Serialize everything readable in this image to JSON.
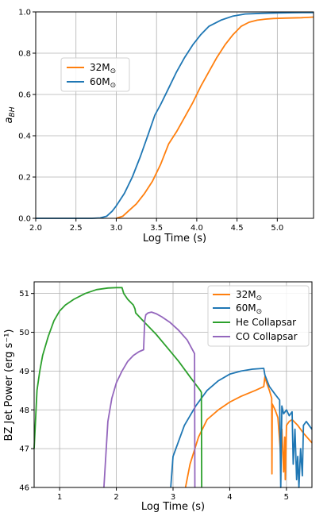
{
  "colors": {
    "orange": "#ff7f0e",
    "blue": "#1f77b4",
    "green": "#2ca02c",
    "purple": "#9467bd",
    "grid": "#b0b0b0"
  },
  "chart_data": [
    {
      "type": "line",
      "xlabel": "Log Time (s)",
      "ylabel_main": "a",
      "ylabel_sub": "BH",
      "xlim": [
        2.0,
        5.45
      ],
      "ylim": [
        0.0,
        1.0
      ],
      "xticks": [
        "2.0",
        "2.5",
        "3.0",
        "3.5",
        "4.0",
        "4.5",
        "5.0"
      ],
      "yticks": [
        "0.0",
        "0.2",
        "0.4",
        "0.6",
        "0.8",
        "1.0"
      ],
      "grid": true,
      "legend_position": "upper-left",
      "series": [
        {
          "name": "32M",
          "name_sub": "⊙",
          "color": "#ff7f0e",
          "x": [
            3.0,
            3.08,
            3.15,
            3.25,
            3.35,
            3.45,
            3.55,
            3.65,
            3.75,
            3.85,
            3.95,
            4.05,
            4.15,
            4.25,
            4.35,
            4.45,
            4.55,
            4.65,
            4.75,
            4.85,
            4.95,
            5.1,
            5.3,
            5.45
          ],
          "y": [
            0.0,
            0.01,
            0.035,
            0.07,
            0.12,
            0.18,
            0.26,
            0.36,
            0.42,
            0.49,
            0.56,
            0.64,
            0.71,
            0.78,
            0.84,
            0.89,
            0.93,
            0.95,
            0.96,
            0.965,
            0.968,
            0.97,
            0.972,
            0.975
          ]
        },
        {
          "name": "60M",
          "name_sub": "⊙",
          "color": "#1f77b4",
          "x": [
            2.0,
            2.7,
            2.8,
            2.88,
            2.95,
            3.0,
            3.1,
            3.2,
            3.3,
            3.4,
            3.48,
            3.55,
            3.65,
            3.75,
            3.85,
            3.95,
            4.05,
            4.15,
            4.3,
            4.45,
            4.6,
            4.8,
            5.0,
            5.2,
            5.45
          ],
          "y": [
            0.0,
            0.0,
            0.002,
            0.01,
            0.035,
            0.06,
            0.12,
            0.2,
            0.3,
            0.41,
            0.5,
            0.55,
            0.63,
            0.71,
            0.78,
            0.84,
            0.89,
            0.93,
            0.96,
            0.98,
            0.99,
            0.993,
            0.995,
            0.996,
            0.997
          ]
        }
      ]
    },
    {
      "type": "line",
      "xlabel": "Log Time (s)",
      "ylabel": "BZ Jet Power (erg s⁻¹)",
      "xlim": [
        0.55,
        5.45
      ],
      "ylim": [
        46.0,
        51.3
      ],
      "xticks": [
        "1",
        "2",
        "3",
        "4",
        "5"
      ],
      "yticks": [
        "46",
        "47",
        "48",
        "49",
        "50",
        "51"
      ],
      "grid": true,
      "legend_position": "upper-right",
      "series": [
        {
          "name": "32M",
          "name_sub": "⊙",
          "color": "#ff7f0e",
          "x": [
            3.22,
            3.3,
            3.45,
            3.6,
            3.8,
            4.0,
            4.2,
            4.45,
            4.6,
            4.62,
            4.65,
            4.7,
            4.74,
            4.745,
            4.75,
            4.8,
            4.85,
            4.88,
            4.9,
            4.92,
            4.95,
            4.97,
            4.98,
            5.0,
            5.05,
            5.1,
            5.2,
            5.3,
            5.45
          ],
          "y": [
            46.0,
            46.6,
            47.3,
            47.75,
            48.0,
            48.2,
            48.35,
            48.5,
            48.6,
            48.85,
            48.7,
            48.5,
            48.3,
            46.35,
            48.15,
            48.0,
            47.8,
            47.2,
            46.8,
            47.5,
            46.4,
            47.3,
            46.2,
            47.6,
            47.7,
            47.75,
            47.6,
            47.4,
            47.15
          ]
        },
        {
          "name": "60M",
          "name_sub": "⊙",
          "color": "#1f77b4",
          "x": [
            2.96,
            3.0,
            3.2,
            3.4,
            3.6,
            3.8,
            4.0,
            4.2,
            4.4,
            4.6,
            4.62,
            4.7,
            4.8,
            4.88,
            4.9,
            4.92,
            4.95,
            5.0,
            5.05,
            5.1,
            5.12,
            5.15,
            5.18,
            5.2,
            5.22,
            5.25,
            5.28,
            5.3,
            5.35,
            5.4,
            5.45
          ],
          "y": [
            46.0,
            46.8,
            47.6,
            48.1,
            48.5,
            48.75,
            48.92,
            49.0,
            49.05,
            49.07,
            48.9,
            48.6,
            48.4,
            48.25,
            46.0,
            48.1,
            47.9,
            48.0,
            47.85,
            47.95,
            46.6,
            47.5,
            46.2,
            46.8,
            46.0,
            47.0,
            46.3,
            47.6,
            47.7,
            47.6,
            47.5
          ]
        },
        {
          "name": "He Collapsar",
          "color": "#2ca02c",
          "x": [
            0.55,
            0.6,
            0.65,
            0.7,
            0.8,
            0.9,
            1.0,
            1.1,
            1.25,
            1.45,
            1.65,
            1.85,
            2.0,
            2.1,
            2.13,
            2.2,
            2.3,
            2.33,
            2.34,
            2.5,
            2.7,
            2.9,
            3.1,
            3.3,
            3.48,
            3.5,
            3.505
          ],
          "y": [
            47.0,
            48.5,
            49.0,
            49.4,
            49.9,
            50.3,
            50.55,
            50.7,
            50.85,
            51.0,
            51.1,
            51.14,
            51.15,
            51.15,
            51.0,
            50.85,
            50.7,
            50.6,
            50.5,
            50.25,
            49.95,
            49.6,
            49.25,
            48.85,
            48.5,
            48.45,
            46.0
          ]
        },
        {
          "name": "CO Collapsar",
          "color": "#9467bd",
          "x": [
            1.78,
            1.85,
            1.92,
            2.0,
            2.1,
            2.2,
            2.3,
            2.4,
            2.48,
            2.5,
            2.52,
            2.56,
            2.62,
            2.7,
            2.8,
            2.95,
            3.1,
            3.25,
            3.38,
            3.385
          ],
          "y": [
            46.0,
            47.7,
            48.3,
            48.7,
            49.0,
            49.25,
            49.4,
            49.5,
            49.55,
            50.3,
            50.45,
            50.5,
            50.52,
            50.48,
            50.4,
            50.25,
            50.05,
            49.8,
            49.45,
            46.0
          ]
        }
      ]
    }
  ]
}
